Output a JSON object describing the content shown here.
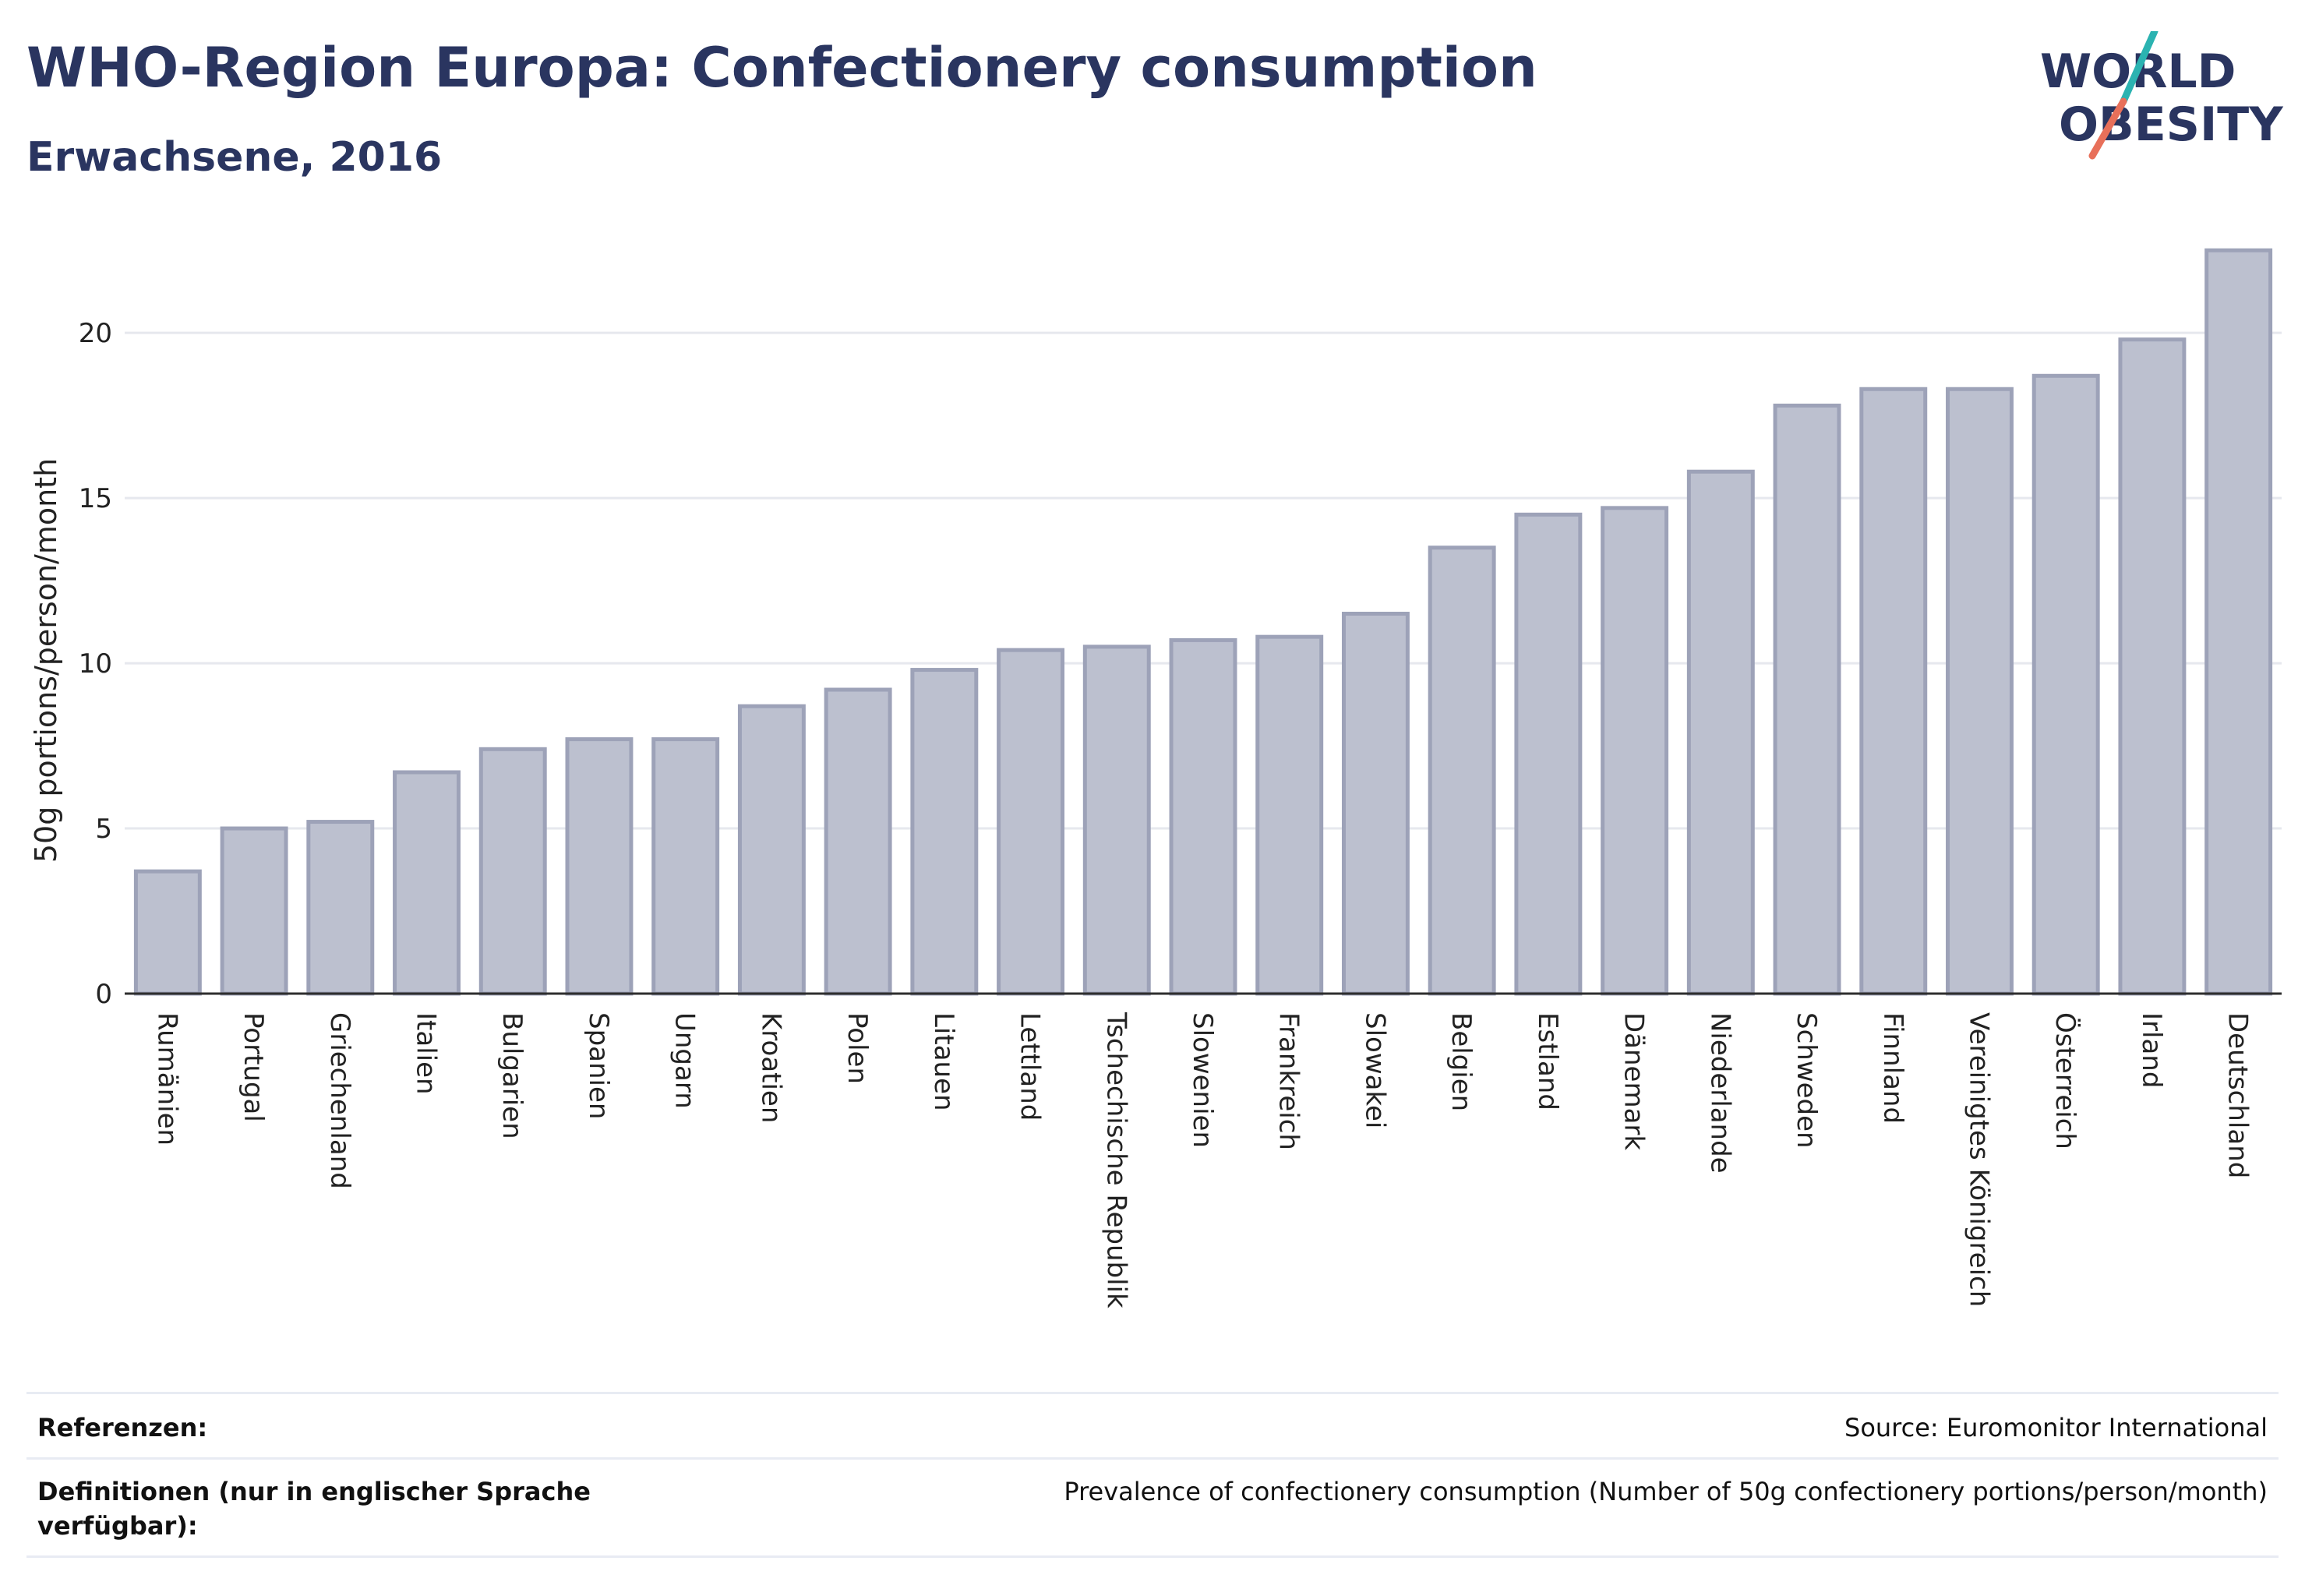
{
  "header": {
    "title": "WHO-Region Europa: Confectionery consumption",
    "subtitle": "Erwachsene, 2016"
  },
  "logo": {
    "line1": "WORLD",
    "line2": "OBESITY",
    "text_color": "#2a3560",
    "accent_teal": "#2bb3b1",
    "accent_coral": "#e8705a"
  },
  "chart_data": {
    "type": "bar",
    "ylabel": "50g portions/person/month",
    "ylim": [
      0,
      23
    ],
    "yticks": [
      0,
      5,
      10,
      15,
      20
    ],
    "grid": true,
    "bar_fill": "#bcc0cf",
    "bar_stroke": "#9da2b8",
    "categories": [
      "Rumänien",
      "Portugal",
      "Griechenland",
      "Italien",
      "Bulgarien",
      "Spanien",
      "Ungarn",
      "Kroatien",
      "Polen",
      "Litauen",
      "Lettland",
      "Tschechische Republik",
      "Slowenien",
      "Frankreich",
      "Slowakei",
      "Belgien",
      "Estland",
      "Dänemark",
      "Niederlande",
      "Schweden",
      "Finnland",
      "Vereinigtes Königreich",
      "Österreich",
      "Irland",
      "Deutschland"
    ],
    "values": [
      3.7,
      5.0,
      5.2,
      6.7,
      7.4,
      7.7,
      7.7,
      8.7,
      9.2,
      9.8,
      10.4,
      10.5,
      10.7,
      10.8,
      11.5,
      13.5,
      14.5,
      14.7,
      15.8,
      17.8,
      18.3,
      18.3,
      18.7,
      19.8,
      22.5
    ]
  },
  "footer": {
    "references_label": "Referenzen:",
    "references_value": "Source: Euromonitor International",
    "definitions_label": "Definitionen (nur in englischer Sprache verfügbar):",
    "definitions_value": "Prevalence of confectionery consumption (Number of 50g confectionery portions/person/month)"
  }
}
